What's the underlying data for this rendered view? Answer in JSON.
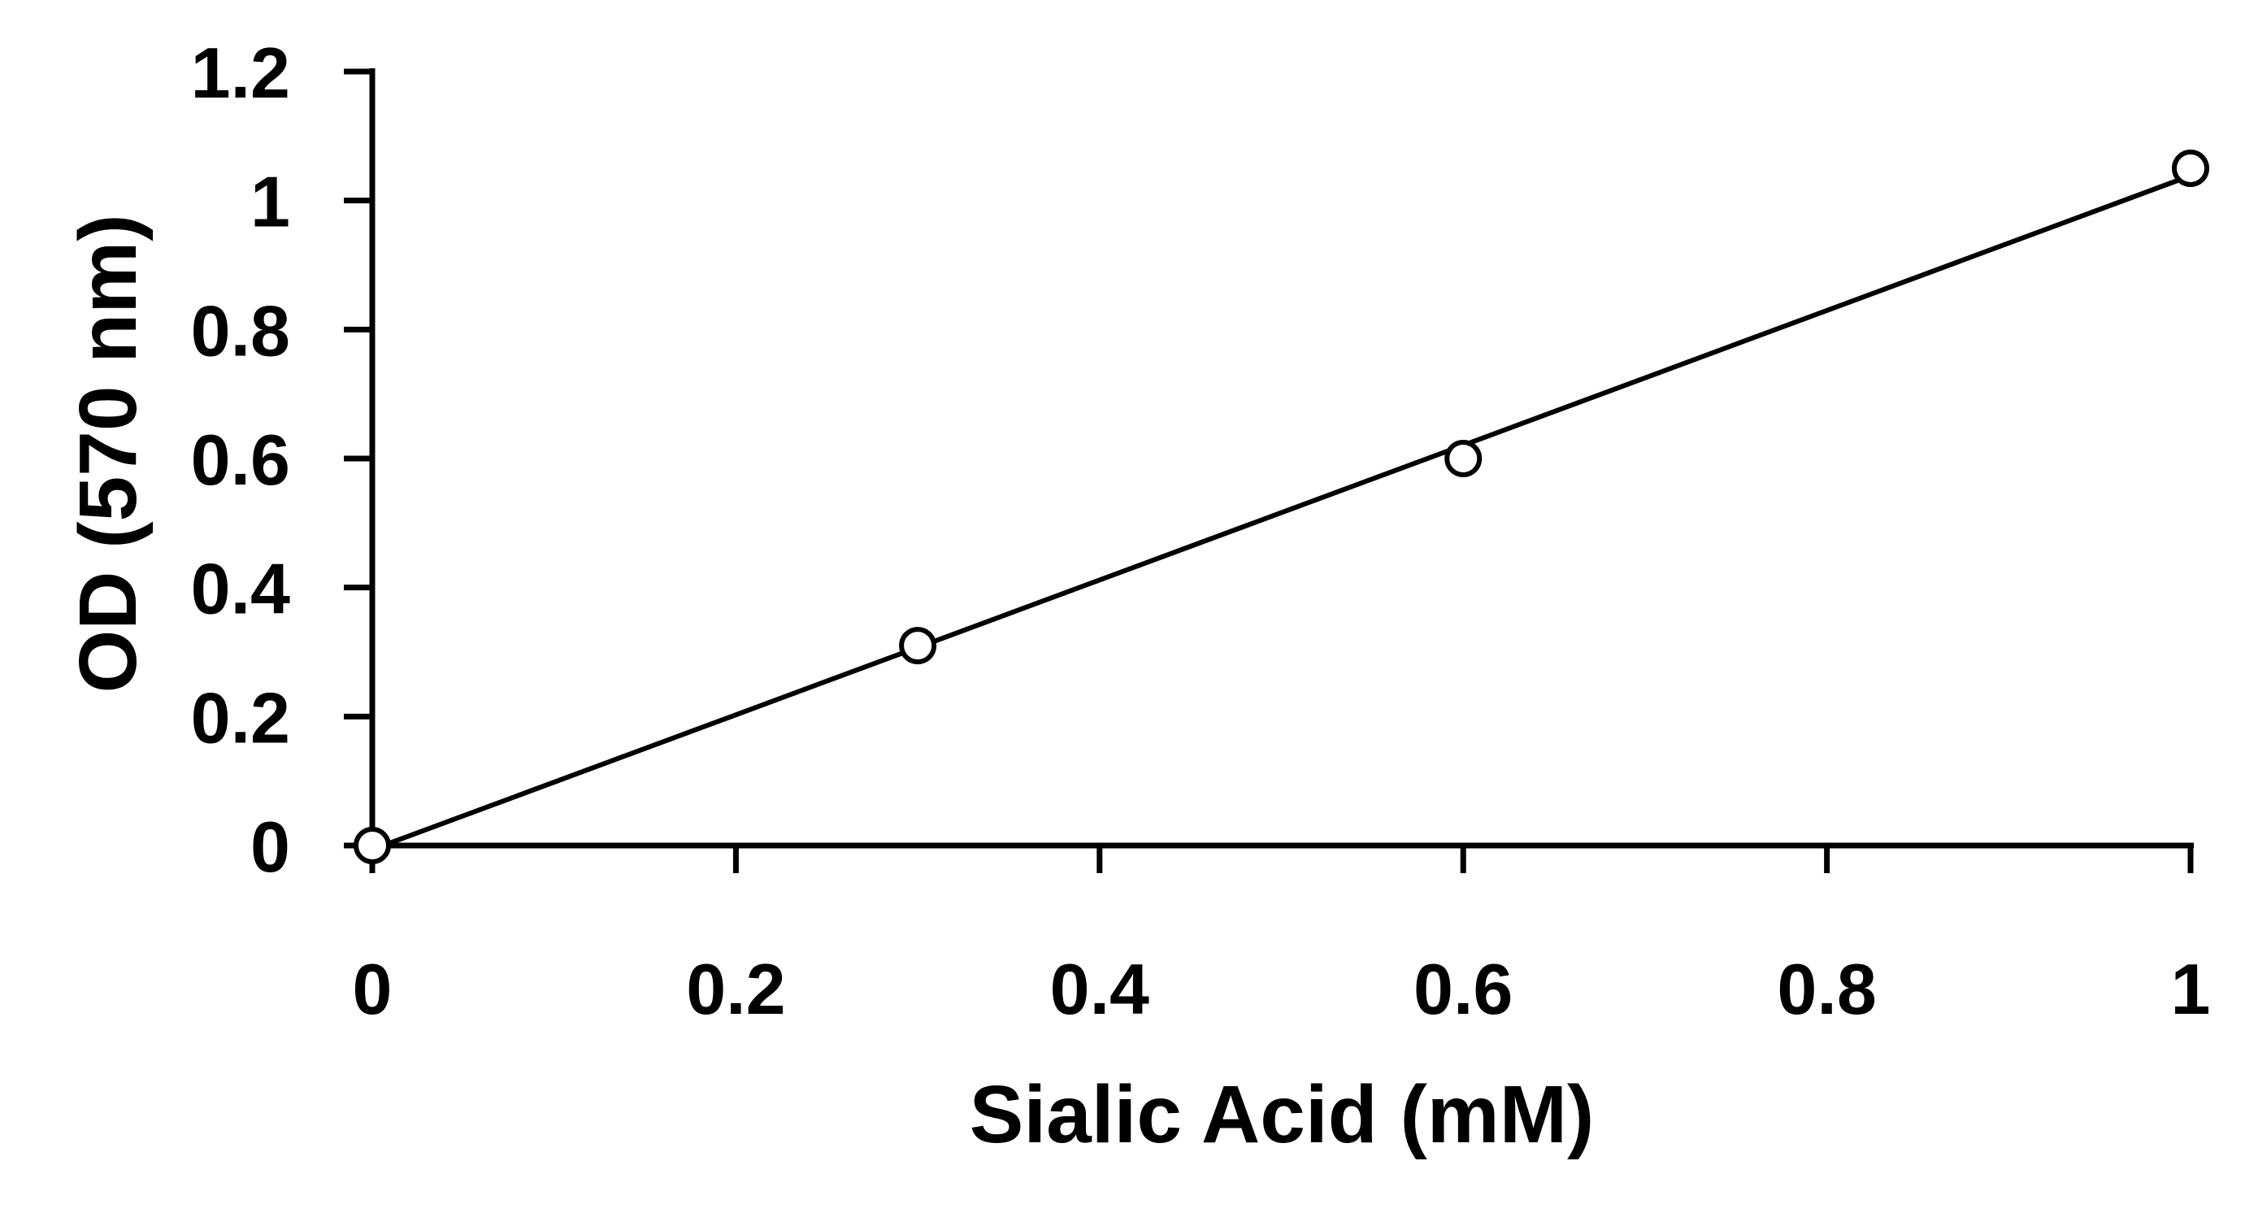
{
  "chart_data": {
    "type": "scatter",
    "title": "",
    "xlabel": "Sialic Acid (mM)",
    "ylabel": "OD (570 nm)",
    "xlim": [
      0,
      1
    ],
    "ylim": [
      0,
      1.2
    ],
    "x_ticks": [
      "0",
      "0.2",
      "0.4",
      "0.6",
      "0.8",
      "1"
    ],
    "y_ticks": [
      "0",
      "0.2",
      "0.4",
      "0.6",
      "0.8",
      "1",
      "1.2"
    ],
    "grid": false,
    "legend": "none",
    "series": [
      {
        "x": [
          0,
          0.3,
          0.6,
          1.0
        ],
        "y": [
          0,
          0.31,
          0.6,
          1.05
        ],
        "marker": "open-circle",
        "trendline": "linear",
        "color": "#000000"
      }
    ]
  }
}
